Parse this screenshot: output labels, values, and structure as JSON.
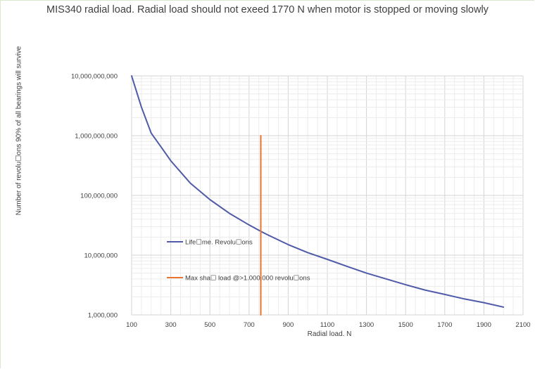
{
  "chart_data": {
    "type": "line",
    "title": "MIS340 radial load. Radial load should not exeed 1770 N when motor is stopped or moving slowly",
    "xlabel": "Radial load. N",
    "ylabel": "Number of revolu☐ons 90% of all bearings will survive",
    "xlim": [
      100,
      2100
    ],
    "ylim": [
      1000000,
      10000000000
    ],
    "yscale": "log",
    "grid": true,
    "legend_position": "inside-left",
    "x_ticks": [
      "100",
      "300",
      "500",
      "700",
      "900",
      "1100",
      "1300",
      "1500",
      "1700",
      "1900",
      "2100"
    ],
    "y_ticks": [
      "1,000,000",
      "10,000,000",
      "100,000,000",
      "1,000,000,000",
      "10,000,000,000"
    ],
    "series": [
      {
        "name": "Life☐me. Revolu☐ons",
        "color": "#4f5aa8",
        "x": [
          100,
          150,
          200,
          250,
          300,
          400,
          500,
          600,
          700,
          760,
          800,
          900,
          1000,
          1100,
          1200,
          1300,
          1400,
          1500,
          1600,
          1700,
          1800,
          1900,
          2000
        ],
        "y": [
          10000000000,
          3000000000,
          1100000000,
          650000000,
          380000000,
          160000000,
          85000000,
          50000000,
          32000000,
          25000000,
          21500000,
          15000000,
          11000000,
          8500000,
          6500000,
          5000000,
          4000000,
          3200000,
          2600000,
          2200000,
          1850000,
          1600000,
          1350000
        ]
      },
      {
        "name": "Max sha☐ load @>1.000.000 revolu☐ons",
        "color": "#e8742f",
        "x": [
          760,
          760
        ],
        "y": [
          1000000,
          1000000000
        ]
      }
    ]
  }
}
